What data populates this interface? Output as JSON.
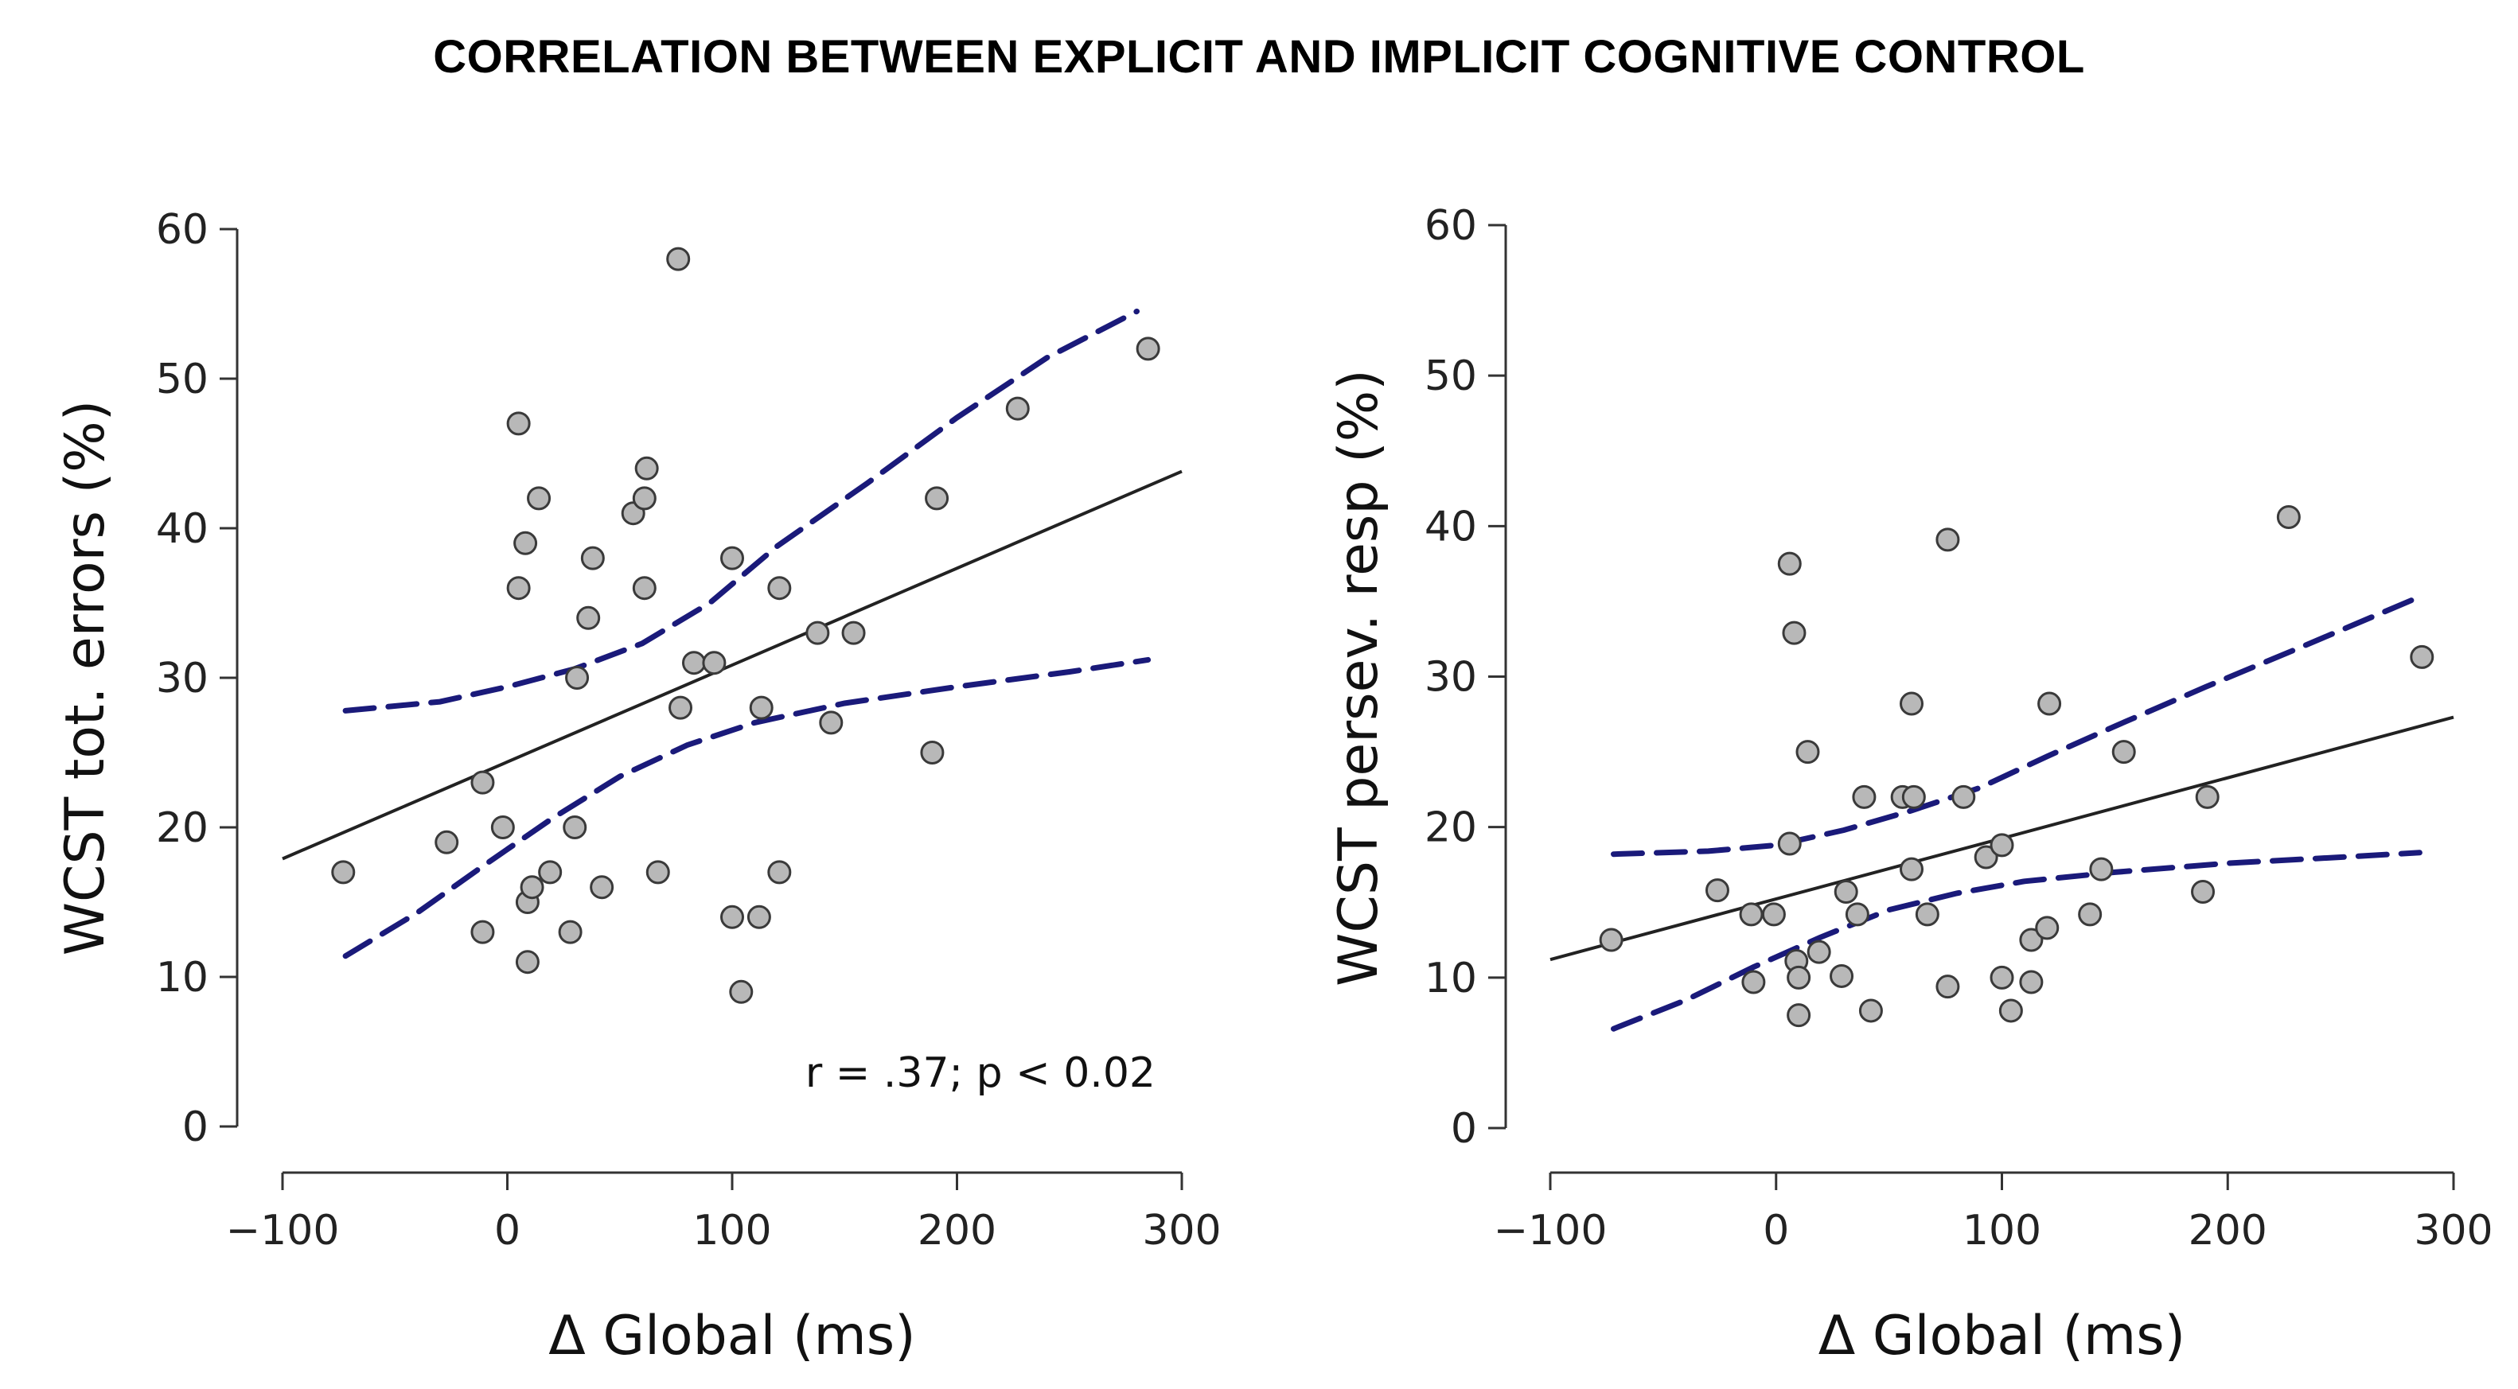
{
  "title": "CORRELATION BETWEEN EXPLICIT AND IMPLICIT COGNITIVE CONTROL",
  "colors": {
    "point_fill": "#b8b8b8",
    "point_stroke": "#3a3a3a",
    "fit_line": "#222222",
    "ci_line": "#1a1a7a"
  },
  "chart_data": [
    {
      "type": "scatter",
      "title": "",
      "xlabel": "Δ Global (ms)",
      "ylabel": "WCST tot. errors (%)",
      "xlim": [
        -100,
        300
      ],
      "ylim": [
        0,
        60
      ],
      "xticks": [
        -100,
        0,
        100,
        200,
        300
      ],
      "xtick_labels": [
        "−100",
        "0",
        "100",
        "200",
        "300"
      ],
      "yticks": [
        0,
        10,
        20,
        30,
        40,
        50,
        60
      ],
      "ytick_labels": [
        "0",
        "10",
        "20",
        "30",
        "40",
        "50",
        "60"
      ],
      "annotation": "r = .37; p < 0.02",
      "points": [
        [
          -73,
          17
        ],
        [
          -27,
          19
        ],
        [
          -11,
          23
        ],
        [
          -11,
          13
        ],
        [
          -2,
          20
        ],
        [
          5,
          47
        ],
        [
          5,
          36
        ],
        [
          8,
          39
        ],
        [
          9,
          15
        ],
        [
          9,
          11
        ],
        [
          11,
          16
        ],
        [
          14,
          42
        ],
        [
          19,
          17
        ],
        [
          28,
          13
        ],
        [
          30,
          20
        ],
        [
          31,
          30
        ],
        [
          36,
          34
        ],
        [
          38,
          38
        ],
        [
          42,
          16
        ],
        [
          56,
          41
        ],
        [
          61,
          42
        ],
        [
          61,
          36
        ],
        [
          62,
          44
        ],
        [
          67,
          17
        ],
        [
          76,
          58
        ],
        [
          77,
          28
        ],
        [
          83,
          31
        ],
        [
          92,
          31
        ],
        [
          100,
          38
        ],
        [
          100,
          14
        ],
        [
          104,
          9
        ],
        [
          112,
          14
        ],
        [
          113,
          28
        ],
        [
          121,
          36
        ],
        [
          121,
          17
        ],
        [
          138,
          33
        ],
        [
          144,
          27
        ],
        [
          154,
          33
        ],
        [
          189,
          25
        ],
        [
          191,
          42
        ],
        [
          227,
          48
        ],
        [
          285,
          52
        ]
      ],
      "fit_line": [
        [
          -100,
          17.9
        ],
        [
          300,
          43.8
        ]
      ],
      "ci_upper": [
        [
          -72,
          27.8
        ],
        [
          -30,
          28.4
        ],
        [
          0,
          29.4
        ],
        [
          30,
          30.6
        ],
        [
          60,
          32.3
        ],
        [
          90,
          35.0
        ],
        [
          120,
          38.8
        ],
        [
          160,
          43.0
        ],
        [
          200,
          47.4
        ],
        [
          240,
          51.4
        ],
        [
          280,
          54.5
        ]
      ],
      "ci_lower": [
        [
          -72,
          11.4
        ],
        [
          -40,
          14.3
        ],
        [
          -10,
          17.5
        ],
        [
          20,
          20.6
        ],
        [
          50,
          23.4
        ],
        [
          80,
          25.5
        ],
        [
          110,
          27.0
        ],
        [
          150,
          28.3
        ],
        [
          200,
          29.4
        ],
        [
          250,
          30.4
        ],
        [
          285,
          31.2
        ]
      ]
    },
    {
      "type": "scatter",
      "title": "",
      "xlabel": "Δ Global  (ms)",
      "ylabel": "WCST persev. resp (%)",
      "xlim": [
        -100,
        300
      ],
      "ylim": [
        0,
        60
      ],
      "xticks": [
        -100,
        0,
        100,
        200,
        300
      ],
      "xtick_labels": [
        "−100",
        "0",
        "100",
        "200",
        "300"
      ],
      "yticks": [
        0,
        10,
        20,
        30,
        40,
        50,
        60
      ],
      "ytick_labels": [
        "0",
        "10",
        "20",
        "30",
        "40",
        "50",
        "60"
      ],
      "annotation": "",
      "points": [
        [
          -73,
          12.5
        ],
        [
          -26,
          15.8
        ],
        [
          -11,
          14.2
        ],
        [
          -10,
          9.7
        ],
        [
          -1,
          14.2
        ],
        [
          6,
          37.5
        ],
        [
          6,
          18.9
        ],
        [
          8,
          32.9
        ],
        [
          9,
          11.1
        ],
        [
          10,
          10.0
        ],
        [
          10,
          7.5
        ],
        [
          14,
          25.0
        ],
        [
          19,
          11.7
        ],
        [
          29,
          10.1
        ],
        [
          31,
          15.7
        ],
        [
          36,
          14.2
        ],
        [
          39,
          22.0
        ],
        [
          42,
          7.8
        ],
        [
          56,
          22.0
        ],
        [
          60,
          28.2
        ],
        [
          61,
          22.0
        ],
        [
          60,
          17.2
        ],
        [
          67,
          14.2
        ],
        [
          76,
          39.1
        ],
        [
          76,
          9.4
        ],
        [
          83,
          22.0
        ],
        [
          93,
          18.0
        ],
        [
          100,
          18.8
        ],
        [
          100,
          10.0
        ],
        [
          104,
          7.8
        ],
        [
          113,
          12.5
        ],
        [
          113,
          9.7
        ],
        [
          121,
          28.2
        ],
        [
          120,
          13.3
        ],
        [
          139,
          14.2
        ],
        [
          144,
          17.2
        ],
        [
          154,
          25.0
        ],
        [
          189,
          15.7
        ],
        [
          191,
          22.0
        ],
        [
          227,
          40.6
        ],
        [
          286,
          31.3
        ]
      ],
      "fit_line": [
        [
          -100,
          11.2
        ],
        [
          300,
          27.3
        ]
      ],
      "ci_upper": [
        [
          -72,
          18.2
        ],
        [
          -30,
          18.4
        ],
        [
          0,
          18.8
        ],
        [
          30,
          19.8
        ],
        [
          60,
          21.1
        ],
        [
          90,
          22.6
        ],
        [
          120,
          24.7
        ],
        [
          150,
          26.7
        ],
        [
          190,
          29.3
        ],
        [
          230,
          31.8
        ],
        [
          285,
          35.3
        ]
      ],
      "ci_lower": [
        [
          -72,
          6.6
        ],
        [
          -40,
          8.5
        ],
        [
          -10,
          10.7
        ],
        [
          20,
          12.7
        ],
        [
          50,
          14.5
        ],
        [
          80,
          15.6
        ],
        [
          110,
          16.4
        ],
        [
          150,
          17.0
        ],
        [
          200,
          17.6
        ],
        [
          250,
          18.0
        ],
        [
          285,
          18.3
        ]
      ]
    }
  ]
}
